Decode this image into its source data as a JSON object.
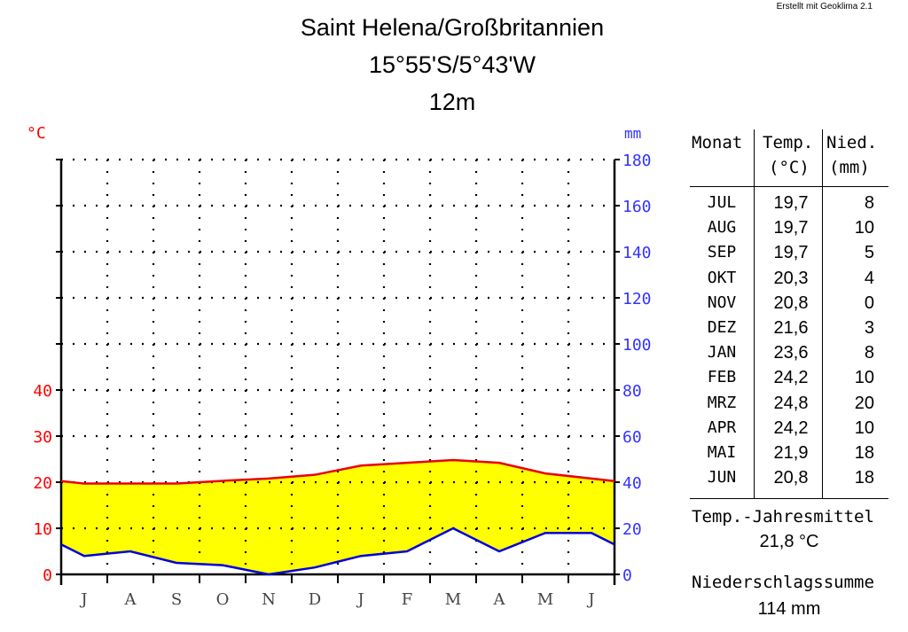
{
  "credit": "Erstellt mit Geoklima 2.1",
  "title": {
    "line1": "Saint Helena/Großbritannien",
    "line2": "15°55'S/5°43'W",
    "line3": "12m"
  },
  "colors": {
    "temperature": "#e8000b",
    "precipitation": "#0000dd",
    "left_axis_text": "#ff0000",
    "right_axis_text": "#3333ff",
    "fill_arid": "#ffff00"
  },
  "chart_data": {
    "type": "line",
    "title": "Saint Helena/Großbritannien",
    "categories": [
      "J",
      "A",
      "S",
      "O",
      "N",
      "D",
      "J",
      "F",
      "M",
      "A",
      "M",
      "J"
    ],
    "left_axis": {
      "label": "°C",
      "ticks": [
        0,
        10,
        20,
        30,
        40
      ],
      "ylim": [
        0,
        90
      ]
    },
    "right_axis": {
      "label": "mm",
      "ticks": [
        0,
        20,
        40,
        60,
        80,
        100,
        120,
        140,
        160,
        180
      ],
      "ylim": [
        0,
        180
      ]
    },
    "grid": true,
    "series": [
      {
        "name": "Temp.",
        "unit": "°C",
        "axis": "left",
        "values": [
          19.7,
          19.7,
          19.7,
          20.3,
          20.8,
          21.6,
          23.6,
          24.2,
          24.8,
          24.2,
          21.9,
          20.8
        ]
      },
      {
        "name": "Nied.",
        "unit": "mm",
        "axis": "right",
        "values": [
          8,
          10,
          5,
          4,
          0,
          3,
          8,
          10,
          20,
          10,
          18,
          18
        ]
      }
    ]
  },
  "table": {
    "headers": {
      "month": "Monat",
      "temp": "Temp.",
      "temp_unit": "(°C)",
      "prec": "Nied.",
      "prec_unit": "(mm)"
    },
    "rows": [
      {
        "m": "JUL",
        "t": "19,7",
        "p": "8"
      },
      {
        "m": "AUG",
        "t": "19,7",
        "p": "10"
      },
      {
        "m": "SEP",
        "t": "19,7",
        "p": "5"
      },
      {
        "m": "OKT",
        "t": "20,3",
        "p": "4"
      },
      {
        "m": "NOV",
        "t": "20,8",
        "p": "0"
      },
      {
        "m": "DEZ",
        "t": "21,6",
        "p": "3"
      },
      {
        "m": "JAN",
        "t": "23,6",
        "p": "8"
      },
      {
        "m": "FEB",
        "t": "24,2",
        "p": "10"
      },
      {
        "m": "MRZ",
        "t": "24,8",
        "p": "20"
      },
      {
        "m": "APR",
        "t": "24,2",
        "p": "10"
      },
      {
        "m": "MAI",
        "t": "21,9",
        "p": "18"
      },
      {
        "m": "JUN",
        "t": "20,8",
        "p": "18"
      }
    ]
  },
  "summary": {
    "temp_label": "Temp.-Jahresmittel",
    "temp_value": "21,8 °C",
    "prec_label": "Niederschlagssumme",
    "prec_value": "114 mm"
  }
}
